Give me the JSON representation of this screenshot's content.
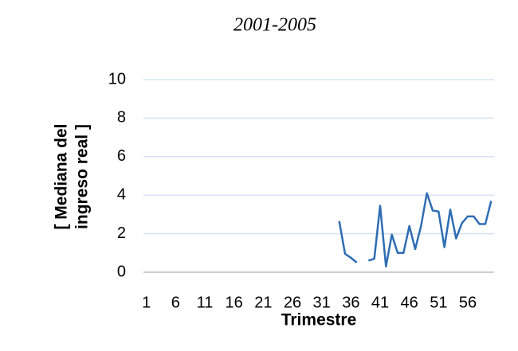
{
  "chart_data": {
    "type": "line",
    "title": "2001-2005",
    "x_label": "Trimestre",
    "y_label": [
      "[ Mediana del",
      "ingreso real ]"
    ],
    "categories": [
      "1",
      null,
      null,
      null,
      null,
      "6",
      null,
      null,
      null,
      null,
      "11",
      null,
      null,
      null,
      null,
      "16",
      null,
      null,
      null,
      null,
      "21",
      null,
      null,
      null,
      null,
      "26",
      null,
      null,
      null,
      null,
      "31",
      null,
      null,
      null,
      null,
      "36",
      null,
      null,
      null,
      null,
      "41",
      null,
      null,
      null,
      null,
      "46",
      null,
      null,
      null,
      null,
      "51",
      null,
      null,
      null,
      null,
      "56",
      null,
      null,
      null,
      null
    ],
    "series": [
      {
        "name": "Mediana",
        "color": "#2e6db4",
        "values": [
          null,
          null,
          null,
          null,
          null,
          null,
          null,
          null,
          null,
          null,
          null,
          null,
          null,
          null,
          null,
          null,
          null,
          null,
          null,
          null,
          null,
          null,
          null,
          null,
          null,
          null,
          null,
          null,
          null,
          null,
          null,
          null,
          null,
          2.65,
          0.95,
          0.75,
          0.5,
          null,
          0.6,
          0.7,
          3.45,
          0.3,
          1.95,
          1.0,
          1.0,
          2.4,
          1.2,
          2.4,
          4.1,
          3.2,
          3.15,
          1.3,
          3.25,
          1.75,
          2.55,
          2.9,
          2.9,
          2.5,
          2.5,
          3.7
        ]
      }
    ],
    "ylim": [
      0,
      10
    ],
    "yticks": [
      0,
      2,
      4,
      6,
      8,
      10
    ],
    "grid": true
  }
}
